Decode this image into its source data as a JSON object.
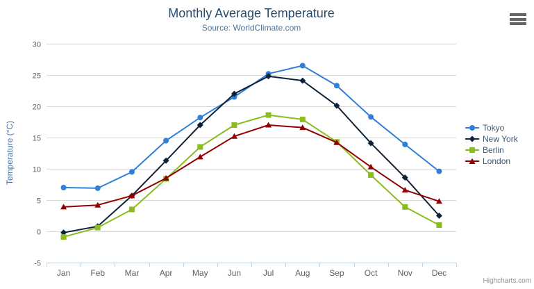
{
  "chart": {
    "title": "Monthly Average Temperature",
    "subtitle": "Source: WorldClimate.com",
    "credits": "Highcharts.com",
    "export_icon": "hamburger-menu-icon"
  },
  "colors": {
    "title": "#274b6d",
    "subtitle": "#4d759e",
    "yaxis_title": "#4572a7",
    "axis_labels": "#606060",
    "gridline": "#d8d8d8",
    "axis_line": "#c0d0e0",
    "legend_text": "#3E576F",
    "credits_text": "#909090"
  },
  "chart_data": {
    "type": "line",
    "title": "Monthly Average Temperature",
    "subtitle": "Source: WorldClimate.com",
    "xlabel": "",
    "ylabel": "Temperature (°C)",
    "ylim": [
      -5,
      30
    ],
    "yticks": [
      -5,
      0,
      5,
      10,
      15,
      20,
      25,
      30
    ],
    "grid": true,
    "legend_position": "right",
    "categories": [
      "Jan",
      "Feb",
      "Mar",
      "Apr",
      "May",
      "Jun",
      "Jul",
      "Aug",
      "Sep",
      "Oct",
      "Nov",
      "Dec"
    ],
    "series": [
      {
        "name": "Tokyo",
        "color": "#2f7ed8",
        "marker": "circle",
        "values": [
          7.0,
          6.9,
          9.5,
          14.5,
          18.2,
          21.5,
          25.2,
          26.5,
          23.3,
          18.3,
          13.9,
          9.6
        ]
      },
      {
        "name": "New York",
        "color": "#0d233a",
        "marker": "diamond",
        "values": [
          -0.2,
          0.8,
          5.7,
          11.3,
          17.0,
          22.0,
          24.8,
          24.1,
          20.1,
          14.1,
          8.6,
          2.5
        ]
      },
      {
        "name": "Berlin",
        "color": "#8bbc21",
        "marker": "square",
        "values": [
          -0.9,
          0.6,
          3.5,
          8.4,
          13.5,
          17.0,
          18.6,
          17.9,
          14.3,
          9.0,
          3.9,
          1.0
        ]
      },
      {
        "name": "London",
        "color": "#910000",
        "marker": "triangle",
        "values": [
          3.9,
          4.2,
          5.7,
          8.5,
          11.9,
          15.2,
          17.0,
          16.6,
          14.2,
          10.3,
          6.6,
          4.8
        ]
      }
    ]
  }
}
